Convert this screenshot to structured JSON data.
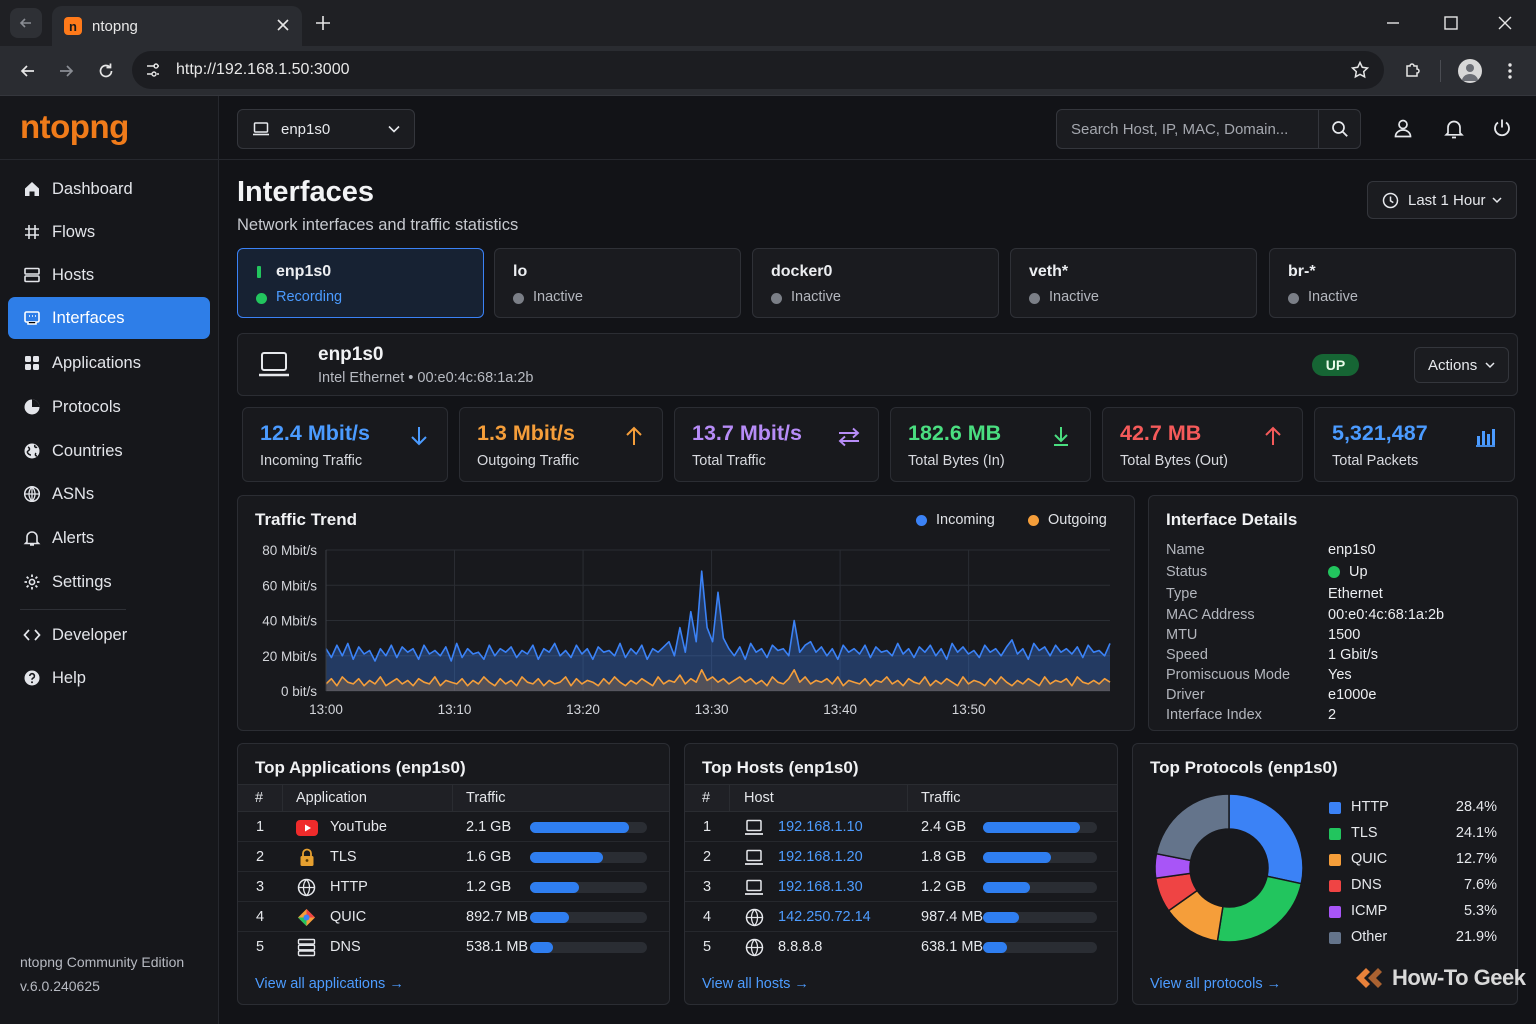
{
  "browser": {
    "tab_title": "ntopng",
    "favicon_letter": "n",
    "url": "http://192.168.1.50:3000"
  },
  "sidebar": {
    "logo": "ntopng",
    "items": [
      {
        "label": "Dashboard",
        "icon": "home-icon"
      },
      {
        "label": "Flows",
        "icon": "flows-icon"
      },
      {
        "label": "Hosts",
        "icon": "hosts-icon"
      },
      {
        "label": "Interfaces",
        "icon": "interfaces-icon",
        "active": true
      },
      {
        "label": "Applications",
        "icon": "applications-icon"
      },
      {
        "label": "Protocols",
        "icon": "protocols-icon"
      },
      {
        "label": "Countries",
        "icon": "globe-icon"
      },
      {
        "label": "ASNs",
        "icon": "asn-icon"
      },
      {
        "label": "Alerts",
        "icon": "bell-icon"
      },
      {
        "label": "Settings",
        "icon": "gear-icon"
      },
      {
        "label": "Developer",
        "icon": "code-icon"
      },
      {
        "label": "Help",
        "icon": "help-icon"
      }
    ],
    "edition": "ntopng Community Edition",
    "version": "v.6.0.240625"
  },
  "header": {
    "interface_select": "enp1s0",
    "search_placeholder": "Search Host, IP, MAC, Domain..."
  },
  "page": {
    "title": "Interfaces",
    "subtitle": "Network interfaces and traffic statistics",
    "time_range": "Last 1 Hour"
  },
  "interface_cards": [
    {
      "name": "enp1s0",
      "status": "Recording",
      "active": true
    },
    {
      "name": "lo",
      "status": "Inactive"
    },
    {
      "name": "docker0",
      "status": "Inactive"
    },
    {
      "name": "veth*",
      "status": "Inactive"
    },
    {
      "name": "br-*",
      "status": "Inactive"
    }
  ],
  "selected_interface": {
    "name": "enp1s0",
    "description": "Intel Ethernet • 00:e0:4c:68:1a:2b",
    "state": "UP",
    "actions_label": "Actions"
  },
  "stats": [
    {
      "value": "12.4 Mbit/s",
      "label": "Incoming Traffic",
      "color": "#4b9bff",
      "icon": "arrow-down-icon"
    },
    {
      "value": "1.3 Mbit/s",
      "label": "Outgoing Traffic",
      "color": "#f59e3a",
      "icon": "arrow-up-icon"
    },
    {
      "value": "13.7 Mbit/s",
      "label": "Total Traffic",
      "color": "#b78cf7",
      "icon": "swap-icon"
    },
    {
      "value": "182.6 MB",
      "label": "Total Bytes (In)",
      "color": "#4ade80",
      "icon": "download-icon"
    },
    {
      "value": "42.7 MB",
      "label": "Total Bytes (Out)",
      "color": "#f55a5a",
      "icon": "arrow-up-icon"
    },
    {
      "value": "5,321,487",
      "label": "Total Packets",
      "color": "#4b9bff",
      "icon": "bar-chart-icon"
    }
  ],
  "traffic_trend": {
    "title": "Traffic Trend",
    "legend": [
      {
        "name": "Incoming",
        "color": "#3b82f6"
      },
      {
        "name": "Outgoing",
        "color": "#f59e3a"
      }
    ]
  },
  "chart_data": {
    "type": "area",
    "title": "Traffic Trend",
    "y_ticks": [
      "80 Mbit/s",
      "60 Mbit/s",
      "40 Mbit/s",
      "20 Mbit/s",
      "0 bit/s"
    ],
    "x_ticks": [
      "13:00",
      "13:10",
      "13:20",
      "13:30",
      "13:40",
      "13:50"
    ],
    "ylim": [
      0,
      80
    ],
    "x_range_minutes": [
      0,
      61
    ],
    "series": [
      {
        "name": "Incoming",
        "color": "#3b82f6",
        "values": [
          24,
          19,
          26,
          20,
          27,
          18,
          25,
          21,
          23,
          17,
          24,
          20,
          26,
          19,
          25,
          22,
          24,
          18,
          26,
          21,
          23,
          20,
          25,
          17,
          27,
          19,
          24,
          21,
          22,
          18,
          26,
          20,
          24,
          22,
          25,
          19,
          23,
          21,
          26,
          18,
          24,
          22,
          27,
          20,
          23,
          19,
          26,
          21,
          24,
          18,
          25,
          22,
          23,
          20,
          27,
          19,
          24,
          21,
          26,
          18,
          24,
          22,
          25,
          28,
          20,
          36,
          22,
          45,
          28,
          68,
          36,
          28,
          56,
          30,
          24,
          20,
          25,
          18,
          27,
          22,
          24,
          19,
          26,
          23,
          24,
          20,
          40,
          22,
          26,
          28,
          22,
          25,
          20,
          24,
          18,
          26,
          22,
          24,
          21,
          26,
          19,
          25,
          22,
          23,
          20,
          27,
          21,
          24,
          19,
          25,
          22,
          26,
          20,
          24,
          18,
          27,
          22,
          25,
          21,
          23,
          19,
          26,
          22,
          24,
          20,
          25,
          29,
          21,
          24,
          18,
          27,
          23,
          25,
          20,
          26,
          22,
          24,
          21,
          25,
          19,
          26,
          22,
          23,
          20,
          27
        ]
      },
      {
        "name": "Outgoing",
        "color": "#f59e3a",
        "values": [
          4,
          7,
          3,
          8,
          5,
          4,
          7,
          3,
          6,
          4,
          8,
          3,
          5,
          7,
          4,
          6,
          3,
          7,
          5,
          4,
          8,
          3,
          6,
          5,
          4,
          7,
          3,
          6,
          4,
          8,
          5,
          3,
          7,
          4,
          6,
          3,
          8,
          5,
          4,
          7,
          3,
          6,
          4,
          5,
          8,
          3,
          7,
          4,
          6,
          5,
          3,
          7,
          4,
          8,
          5,
          3,
          6,
          4,
          7,
          5,
          3,
          8,
          4,
          6,
          5,
          9,
          4,
          7,
          5,
          12,
          6,
          8,
          5,
          7,
          4,
          6,
          8,
          5,
          7,
          4,
          6,
          3,
          8,
          5,
          4,
          7,
          12,
          5,
          8,
          4,
          6,
          5,
          7,
          4,
          8,
          3,
          6,
          5,
          4,
          7,
          3,
          6,
          5,
          8,
          4,
          6,
          3,
          7,
          5,
          4,
          8,
          3,
          6,
          4,
          7,
          5,
          3,
          8,
          4,
          6,
          5,
          3,
          7,
          4,
          8,
          5,
          3,
          6,
          4,
          7,
          5,
          3,
          8,
          4,
          6,
          5,
          7,
          3,
          8,
          5,
          4,
          6,
          4,
          7,
          5
        ]
      }
    ],
    "grid": true,
    "legend_position": "top-right"
  },
  "interface_details": {
    "title": "Interface Details",
    "rows": [
      {
        "key": "Name",
        "value": "enp1s0"
      },
      {
        "key": "Status",
        "value": "Up",
        "status_color": "#22c55e"
      },
      {
        "key": "Type",
        "value": "Ethernet"
      },
      {
        "key": "MAC Address",
        "value": "00:e0:4c:68:1a:2b"
      },
      {
        "key": "MTU",
        "value": "1500"
      },
      {
        "key": "Speed",
        "value": "1 Gbit/s"
      },
      {
        "key": "Promiscuous Mode",
        "value": "Yes"
      },
      {
        "key": "Driver",
        "value": "e1000e"
      },
      {
        "key": "Interface Index",
        "value": "2"
      }
    ]
  },
  "top_applications": {
    "title": "Top Applications (enp1s0)",
    "headers": [
      "#",
      "Application",
      "Traffic"
    ],
    "rows": [
      {
        "rank": "1",
        "name": "YouTube",
        "traffic": "2.1 GB",
        "share": 0.85,
        "icon": "youtube-icon"
      },
      {
        "rank": "2",
        "name": "TLS",
        "traffic": "1.6 GB",
        "share": 0.62,
        "icon": "lock-icon"
      },
      {
        "rank": "3",
        "name": "HTTP",
        "traffic": "1.2 GB",
        "share": 0.42,
        "icon": "globe-icon"
      },
      {
        "rank": "4",
        "name": "QUIC",
        "traffic": "892.7 MB",
        "share": 0.33,
        "icon": "quic-icon"
      },
      {
        "rank": "5",
        "name": "DNS",
        "traffic": "538.1 MB",
        "share": 0.2,
        "icon": "server-icon"
      }
    ],
    "view_all": "View all applications →"
  },
  "top_hosts": {
    "title": "Top Hosts (enp1s0)",
    "headers": [
      "#",
      "Host",
      "Traffic"
    ],
    "rows": [
      {
        "rank": "1",
        "host": "192.168.1.10",
        "traffic": "2.4 GB",
        "share": 0.85,
        "icon": "laptop-icon",
        "link": true
      },
      {
        "rank": "2",
        "host": "192.168.1.20",
        "traffic": "1.8 GB",
        "share": 0.6,
        "icon": "laptop-icon",
        "link": true
      },
      {
        "rank": "3",
        "host": "192.168.1.30",
        "traffic": "1.2 GB",
        "share": 0.41,
        "icon": "laptop-icon",
        "link": true
      },
      {
        "rank": "4",
        "host": "142.250.72.14",
        "traffic": "987.4 MB",
        "share": 0.32,
        "icon": "globe-icon",
        "link": true
      },
      {
        "rank": "5",
        "host": "8.8.8.8",
        "traffic": "638.1 MB",
        "share": 0.21,
        "icon": "globe-icon",
        "link": false
      }
    ],
    "view_all": "View all hosts →"
  },
  "top_protocols": {
    "title": "Top Protocols (enp1s0)",
    "slices": [
      {
        "name": "HTTP",
        "value": 28.4,
        "label": "28.4%",
        "color": "#3b82f6"
      },
      {
        "name": "TLS",
        "value": 24.1,
        "label": "24.1%",
        "color": "#22c55e"
      },
      {
        "name": "QUIC",
        "value": 12.7,
        "label": "12.7%",
        "color": "#f59e3a"
      },
      {
        "name": "DNS",
        "value": 7.6,
        "label": "7.6%",
        "color": "#ef4444"
      },
      {
        "name": "ICMP",
        "value": 5.3,
        "label": "5.3%",
        "color": "#a855f7"
      },
      {
        "name": "Other",
        "value": 21.9,
        "label": "21.9%",
        "color": "#64748b"
      }
    ],
    "view_all": "View all protocols →"
  },
  "watermark": "How-To Geek"
}
